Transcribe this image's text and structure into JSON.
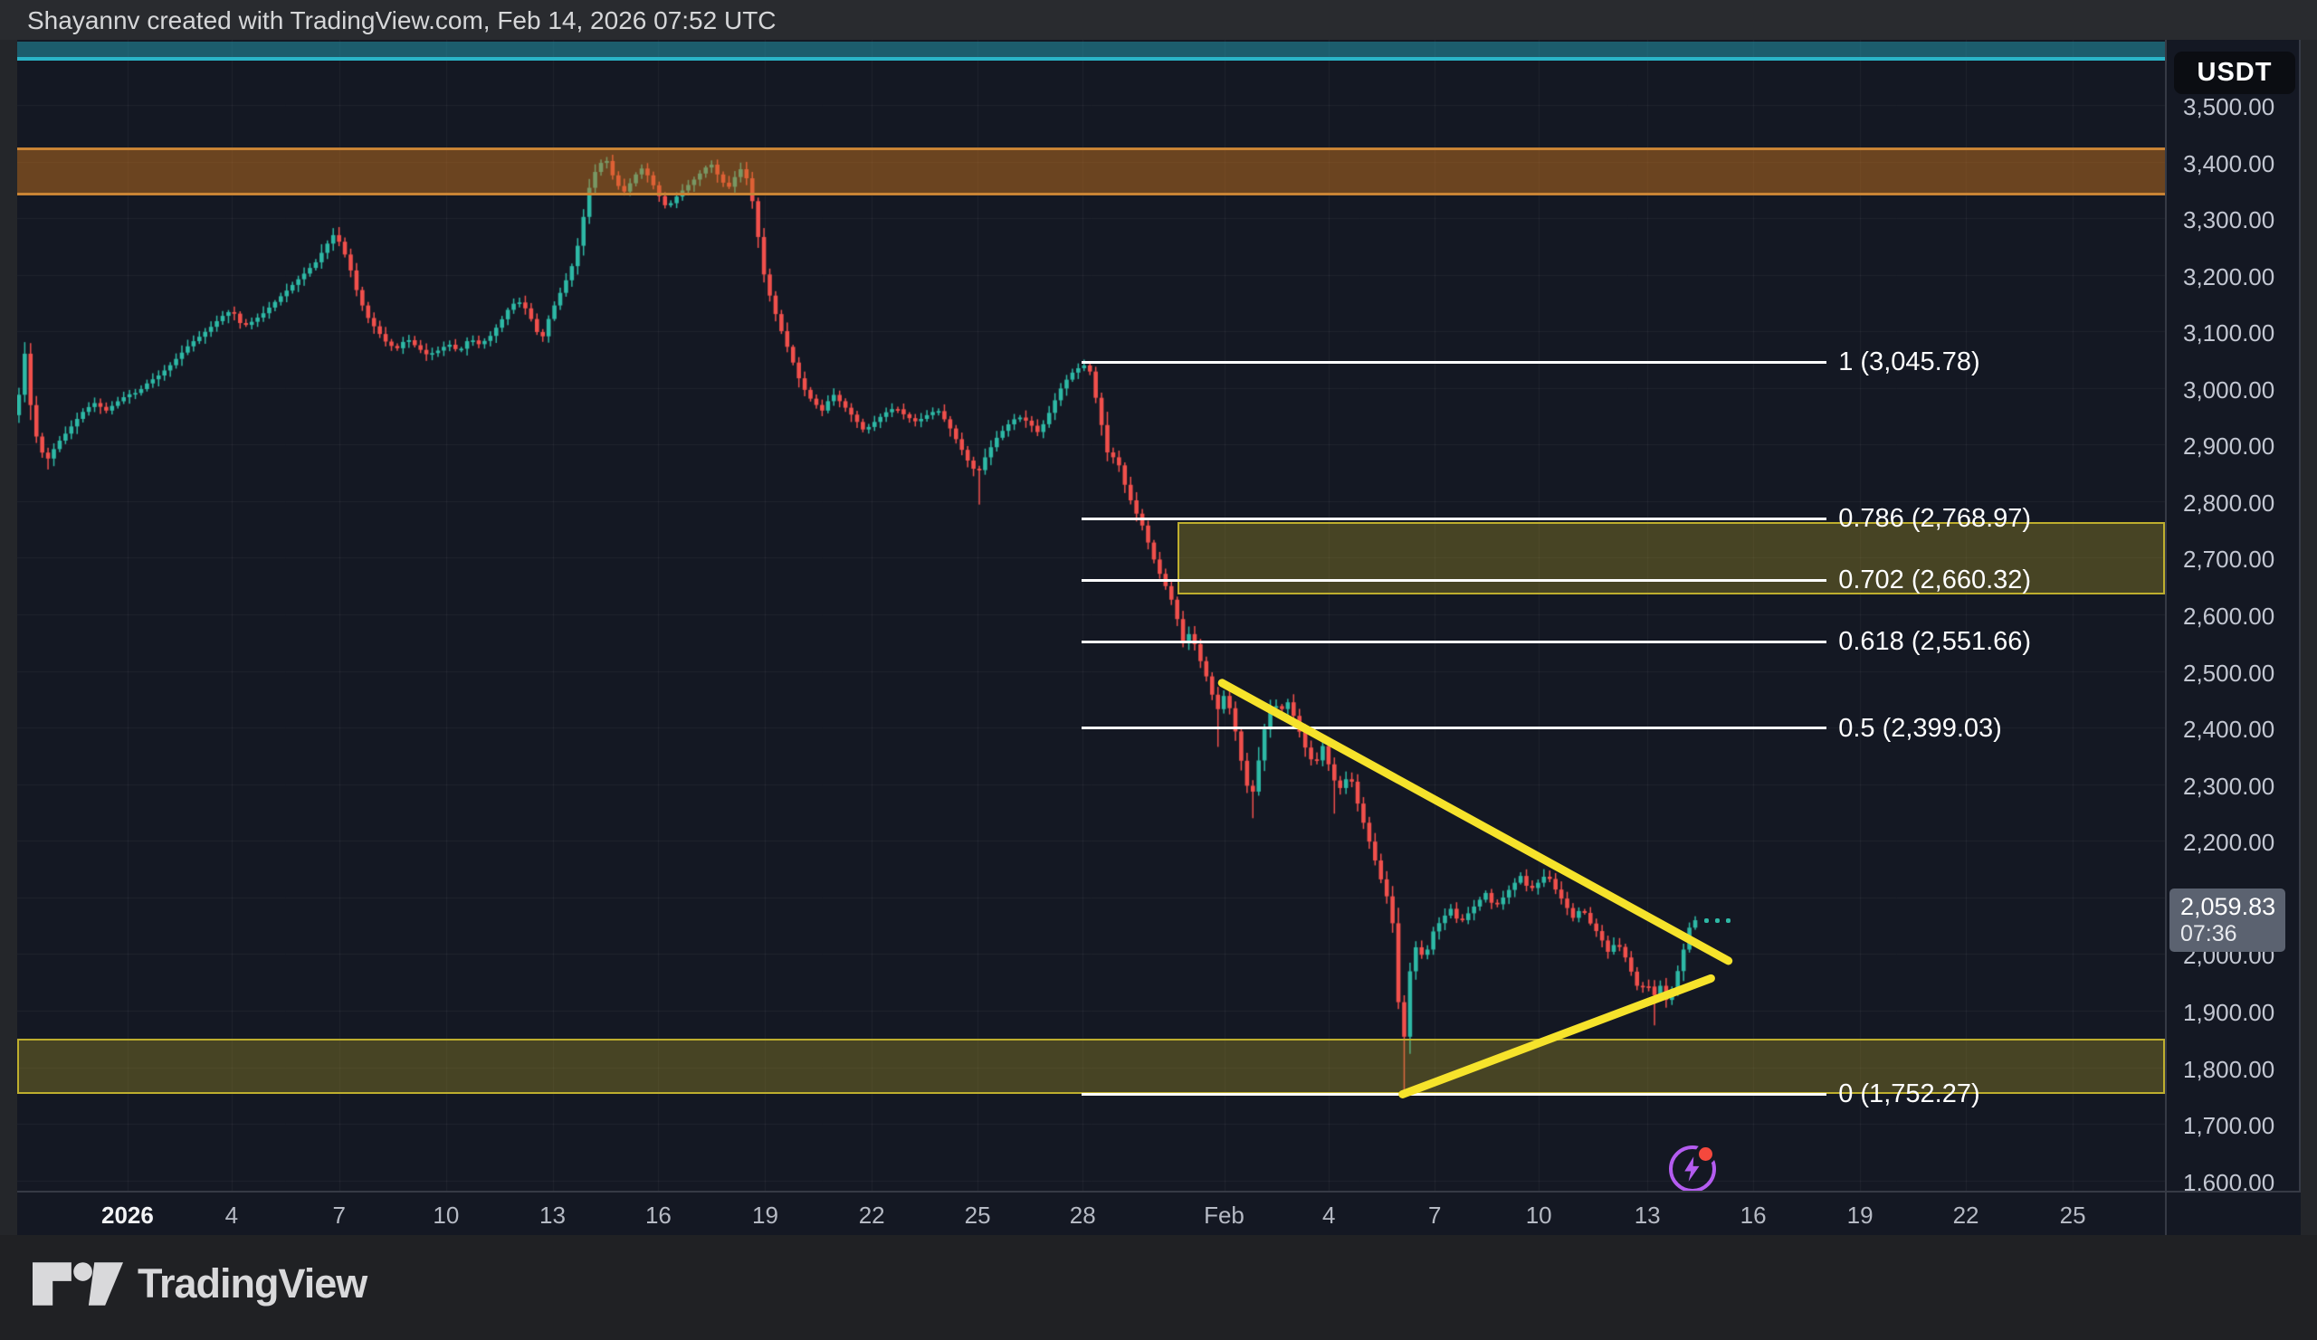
{
  "header": {
    "attribution": "Shayannv created with TradingView.com, Feb 14, 2026 07:52 UTC"
  },
  "footer": {
    "logo_text": "TradingView"
  },
  "price_scale": {
    "currency_label": "USDT",
    "ticks": [
      {
        "label": "3,500.00",
        "value": 3500
      },
      {
        "label": "3,400.00",
        "value": 3400
      },
      {
        "label": "3,300.00",
        "value": 3300
      },
      {
        "label": "3,200.00",
        "value": 3200
      },
      {
        "label": "3,100.00",
        "value": 3100
      },
      {
        "label": "3,000.00",
        "value": 3000
      },
      {
        "label": "2,900.00",
        "value": 2900
      },
      {
        "label": "2,800.00",
        "value": 2800
      },
      {
        "label": "2,700.00",
        "value": 2700
      },
      {
        "label": "2,600.00",
        "value": 2600
      },
      {
        "label": "2,500.00",
        "value": 2500
      },
      {
        "label": "2,400.00",
        "value": 2400
      },
      {
        "label": "2,300.00",
        "value": 2300
      },
      {
        "label": "2,200.00",
        "value": 2200
      },
      {
        "label": "2,100.00",
        "value": 2100
      },
      {
        "label": "2,000.00",
        "value": 2000
      },
      {
        "label": "1,900.00",
        "value": 1900
      },
      {
        "label": "1,800.00",
        "value": 1800
      },
      {
        "label": "1,700.00",
        "value": 1700
      },
      {
        "label": "1,600.00",
        "value": 1600
      }
    ],
    "last_price_badge": {
      "price": "2,059.83",
      "time": "07:36"
    }
  },
  "time_scale": {
    "labels": [
      {
        "text": "2026",
        "day": 3.11,
        "bold": true
      },
      {
        "text": "4",
        "day": 6.09
      },
      {
        "text": "7",
        "day": 9.17
      },
      {
        "text": "10",
        "day": 12.23
      },
      {
        "text": "13",
        "day": 15.28
      },
      {
        "text": "16",
        "day": 18.31
      },
      {
        "text": "19",
        "day": 21.37
      },
      {
        "text": "22",
        "day": 24.42
      },
      {
        "text": "25",
        "day": 27.45
      },
      {
        "text": "28",
        "day": 30.46
      },
      {
        "text": "Feb",
        "day": 34.51
      },
      {
        "text": "4",
        "day": 37.51
      },
      {
        "text": "7",
        "day": 40.54
      },
      {
        "text": "10",
        "day": 43.52
      },
      {
        "text": "13",
        "day": 46.63
      },
      {
        "text": "16",
        "day": 49.66
      },
      {
        "text": "19",
        "day": 52.72
      },
      {
        "text": "22",
        "day": 55.75
      },
      {
        "text": "25",
        "day": 58.81
      }
    ]
  },
  "chart_data": {
    "type": "candlestick",
    "quote_currency": "USDT",
    "last_price": 2059.83,
    "last_time": "07:36",
    "candles_per_day": 6,
    "days_span": 48.0,
    "open_start": 2952,
    "x_axis": {
      "xlim_days": [
        -0.05,
        61.45
      ],
      "grid": "faint"
    },
    "y_axis": {
      "ylim": [
        1582,
        3615
      ],
      "grid": "faint"
    },
    "colors": {
      "up": "#2eb9a6",
      "down": "#f1504c",
      "background": "#141823",
      "fib_line": "#ffffff",
      "trendline": "#f6e32b",
      "teal_zone_fill": "rgba(34,152,172,0.55)",
      "teal_zone_border": "#2ab5c8",
      "supply_zone_fill": "rgba(202,117,30,0.48)",
      "supply_zone_border": "#c98435",
      "olive_zone_fill": "rgba(175,158,40,0.33)",
      "olive_zone_border": "#beae2e",
      "grid": "rgba(255,255,255,0.05)",
      "badge_bg": "#5b6270"
    },
    "fib_levels": [
      {
        "ratio": "1",
        "value": 3045.78,
        "label": "1 (3,045.78)"
      },
      {
        "ratio": "0.786",
        "value": 2768.97,
        "label": "0.786 (2,768.97)"
      },
      {
        "ratio": "0.702",
        "value": 2660.32,
        "label": "0.702 (2,660.32)"
      },
      {
        "ratio": "0.618",
        "value": 2551.66,
        "label": "0.618 (2,551.66)"
      },
      {
        "ratio": "0.5",
        "value": 2399.03,
        "label": "0.5 (2,399.03)"
      },
      {
        "ratio": "0",
        "value": 1752.27,
        "label": "0 (1,752.27)"
      }
    ],
    "fib_line_span_days": [
      30.44,
      51.76
    ],
    "fib_label_day": 52.1,
    "zones": [
      {
        "name": "teal-resistance-zone",
        "price": [
          3578,
          3612
        ],
        "from_day": null,
        "style": "teal"
      },
      {
        "name": "supply-zone",
        "price": [
          3340,
          3425
        ],
        "from_day": null,
        "style": "supply"
      },
      {
        "name": "fib-golden-zone",
        "price": [
          2635,
          2763
        ],
        "from_day": 33.17,
        "style": "olive"
      },
      {
        "name": "demand-zone",
        "price": [
          1752.27,
          1851
        ],
        "from_day": null,
        "style": "olive"
      }
    ],
    "trendlines": [
      {
        "name": "triangle-upper",
        "from": {
          "day": 34.45,
          "price": 2479
        },
        "to": {
          "day": 48.95,
          "price": 1988
        }
      },
      {
        "name": "triangle-lower",
        "from": {
          "day": 39.62,
          "price": 1752.3
        },
        "to": {
          "day": 48.45,
          "price": 1957
        }
      }
    ],
    "last_price_dots": {
      "price": 2059.83,
      "start_day": 48.3,
      "gap_days": 0.31,
      "count": 3
    },
    "live_icon": {
      "day": 47.93,
      "price": 1620
    },
    "wick_anchors": [
      {
        "day": 0.8,
        "low": 2856
      },
      {
        "day": 16.8,
        "high": 3408
      },
      {
        "day": 19.8,
        "high": 3402
      },
      {
        "day": 20.65,
        "high": 3398
      },
      {
        "day": 27.45,
        "low": 2794
      },
      {
        "day": 30.62,
        "high": 3045.78
      },
      {
        "day": 34.3,
        "low": 2366
      },
      {
        "day": 35.3,
        "low": 2240
      },
      {
        "day": 37.6,
        "low": 2248
      },
      {
        "day": 39.62,
        "low": 1752.27
      },
      {
        "day": 46.8,
        "low": 1874
      }
    ],
    "close_path": [
      [
        0.0,
        2988
      ],
      [
        0.17,
        3062
      ],
      [
        0.34,
        2966
      ],
      [
        0.55,
        2898
      ],
      [
        0.8,
        2872
      ],
      [
        1.1,
        2902
      ],
      [
        1.45,
        2928
      ],
      [
        1.8,
        2956
      ],
      [
        2.15,
        2974
      ],
      [
        2.5,
        2960
      ],
      [
        2.8,
        2975
      ],
      [
        3.1,
        2988
      ],
      [
        3.4,
        2992
      ],
      [
        3.7,
        3010
      ],
      [
        4.0,
        3022
      ],
      [
        4.3,
        3038
      ],
      [
        4.6,
        3058
      ],
      [
        4.9,
        3078
      ],
      [
        5.2,
        3092
      ],
      [
        5.5,
        3108
      ],
      [
        5.8,
        3126
      ],
      [
        6.1,
        3138
      ],
      [
        6.4,
        3108
      ],
      [
        6.7,
        3118
      ],
      [
        7.0,
        3132
      ],
      [
        7.3,
        3150
      ],
      [
        7.6,
        3168
      ],
      [
        7.9,
        3186
      ],
      [
        8.2,
        3204
      ],
      [
        8.5,
        3222
      ],
      [
        8.8,
        3252
      ],
      [
        9.0,
        3270
      ],
      [
        9.2,
        3256
      ],
      [
        9.45,
        3218
      ],
      [
        9.7,
        3166
      ],
      [
        9.95,
        3128
      ],
      [
        10.2,
        3106
      ],
      [
        10.5,
        3082
      ],
      [
        10.8,
        3068
      ],
      [
        11.1,
        3088
      ],
      [
        11.4,
        3072
      ],
      [
        11.7,
        3058
      ],
      [
        12.0,
        3066
      ],
      [
        12.3,
        3078
      ],
      [
        12.6,
        3064
      ],
      [
        12.9,
        3088
      ],
      [
        13.2,
        3076
      ],
      [
        13.5,
        3092
      ],
      [
        13.8,
        3118
      ],
      [
        14.1,
        3148
      ],
      [
        14.4,
        3152
      ],
      [
        14.7,
        3118
      ],
      [
        14.95,
        3082
      ],
      [
        15.2,
        3128
      ],
      [
        15.5,
        3168
      ],
      [
        15.8,
        3208
      ],
      [
        16.05,
        3262
      ],
      [
        16.3,
        3348
      ],
      [
        16.55,
        3390
      ],
      [
        16.8,
        3406
      ],
      [
        17.05,
        3368
      ],
      [
        17.3,
        3344
      ],
      [
        17.55,
        3366
      ],
      [
        17.8,
        3390
      ],
      [
        18.05,
        3372
      ],
      [
        18.3,
        3342
      ],
      [
        18.55,
        3318
      ],
      [
        18.8,
        3336
      ],
      [
        19.05,
        3352
      ],
      [
        19.3,
        3366
      ],
      [
        19.55,
        3382
      ],
      [
        19.8,
        3398
      ],
      [
        20.05,
        3372
      ],
      [
        20.3,
        3352
      ],
      [
        20.65,
        3388
      ],
      [
        20.9,
        3364
      ],
      [
        21.1,
        3296
      ],
      [
        21.3,
        3208
      ],
      [
        21.55,
        3152
      ],
      [
        21.8,
        3106
      ],
      [
        22.1,
        3056
      ],
      [
        22.4,
        3006
      ],
      [
        22.7,
        2978
      ],
      [
        23.0,
        2960
      ],
      [
        23.3,
        2990
      ],
      [
        23.6,
        2970
      ],
      [
        23.9,
        2948
      ],
      [
        24.2,
        2924
      ],
      [
        24.5,
        2940
      ],
      [
        24.8,
        2956
      ],
      [
        25.1,
        2966
      ],
      [
        25.4,
        2950
      ],
      [
        25.7,
        2940
      ],
      [
        26.0,
        2952
      ],
      [
        26.3,
        2962
      ],
      [
        26.6,
        2936
      ],
      [
        26.9,
        2902
      ],
      [
        27.2,
        2868
      ],
      [
        27.45,
        2848
      ],
      [
        27.7,
        2882
      ],
      [
        28.0,
        2912
      ],
      [
        28.3,
        2934
      ],
      [
        28.6,
        2950
      ],
      [
        28.9,
        2940
      ],
      [
        29.2,
        2920
      ],
      [
        29.5,
        2956
      ],
      [
        29.8,
        2996
      ],
      [
        30.1,
        3024
      ],
      [
        30.4,
        3038
      ],
      [
        30.62,
        3042
      ],
      [
        30.85,
        2978
      ],
      [
        31.05,
        2920
      ],
      [
        31.25,
        2862
      ],
      [
        31.4,
        2890
      ],
      [
        31.55,
        2850
      ],
      [
        31.75,
        2814
      ],
      [
        31.95,
        2784
      ],
      [
        32.15,
        2760
      ],
      [
        32.35,
        2724
      ],
      [
        32.55,
        2688
      ],
      [
        32.75,
        2660
      ],
      [
        32.95,
        2636
      ],
      [
        33.15,
        2596
      ],
      [
        33.35,
        2545
      ],
      [
        33.55,
        2572
      ],
      [
        33.75,
        2530
      ],
      [
        33.95,
        2500
      ],
      [
        34.15,
        2462
      ],
      [
        34.3,
        2428
      ],
      [
        34.5,
        2456
      ],
      [
        34.7,
        2430
      ],
      [
        34.9,
        2375
      ],
      [
        35.1,
        2308
      ],
      [
        35.3,
        2276
      ],
      [
        35.5,
        2342
      ],
      [
        35.7,
        2408
      ],
      [
        35.9,
        2448
      ],
      [
        36.1,
        2428
      ],
      [
        36.35,
        2446
      ],
      [
        36.6,
        2404
      ],
      [
        36.85,
        2362
      ],
      [
        37.1,
        2332
      ],
      [
        37.35,
        2370
      ],
      [
        37.6,
        2312
      ],
      [
        37.85,
        2292
      ],
      [
        38.1,
        2320
      ],
      [
        38.35,
        2262
      ],
      [
        38.6,
        2212
      ],
      [
        38.85,
        2162
      ],
      [
        39.1,
        2112
      ],
      [
        39.3,
        2082
      ],
      [
        39.45,
        1958
      ],
      [
        39.62,
        1812
      ],
      [
        39.78,
        1956
      ],
      [
        40.0,
        2012
      ],
      [
        40.25,
        1992
      ],
      [
        40.5,
        2040
      ],
      [
        40.75,
        2062
      ],
      [
        41.0,
        2080
      ],
      [
        41.25,
        2054
      ],
      [
        41.5,
        2072
      ],
      [
        41.75,
        2090
      ],
      [
        42.0,
        2108
      ],
      [
        42.25,
        2082
      ],
      [
        42.5,
        2100
      ],
      [
        42.75,
        2120
      ],
      [
        43.0,
        2138
      ],
      [
        43.25,
        2112
      ],
      [
        43.5,
        2126
      ],
      [
        43.75,
        2142
      ],
      [
        44.0,
        2114
      ],
      [
        44.25,
        2090
      ],
      [
        44.5,
        2064
      ],
      [
        44.75,
        2082
      ],
      [
        45.0,
        2054
      ],
      [
        45.25,
        2034
      ],
      [
        45.5,
        2004
      ],
      [
        45.75,
        2022
      ],
      [
        46.0,
        1994
      ],
      [
        46.2,
        1964
      ],
      [
        46.4,
        1934
      ],
      [
        46.6,
        1952
      ],
      [
        46.8,
        1924
      ],
      [
        47.0,
        1944
      ],
      [
        47.2,
        1914
      ],
      [
        47.4,
        1950
      ],
      [
        47.6,
        1990
      ],
      [
        47.8,
        2044
      ],
      [
        48.0,
        2059.83
      ]
    ]
  }
}
